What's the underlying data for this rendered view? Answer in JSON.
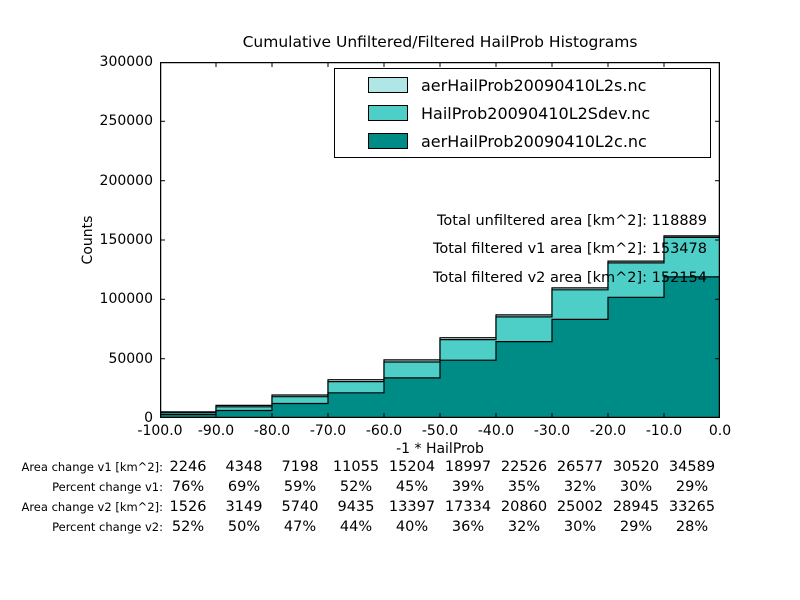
{
  "title": "Cumulative Unfiltered/Filtered HailProb Histograms",
  "legend": {
    "items": [
      {
        "label": "aerHailProb20090410L2s.nc",
        "color": "#B0E7E6"
      },
      {
        "label": "HailProb20090410L2Sdev.nc",
        "color": "#4DCFC8"
      },
      {
        "label": "aerHailProb20090410L2c.nc",
        "color": "#008C86"
      }
    ]
  },
  "annotations": {
    "total_unfiltered": "Total unfiltered area [km^2]: 118889",
    "total_filtered_v1": "Total filtered v1 area [km^2]: 153478",
    "total_filtered_v2": "Total filtered v2 area [km^2]: 152154"
  },
  "chart_data": {
    "type": "area",
    "subtype": "cumulative-step-histograms",
    "title": "Cumulative Unfiltered/Filtered HailProb Histograms",
    "xlabel": "-1 * HailProb",
    "ylabel": "Counts",
    "xlim": [
      -100,
      0
    ],
    "ylim": [
      0,
      300000
    ],
    "grid": false,
    "legend_position": "upper center",
    "bin_edges": [
      -100,
      -90,
      -80,
      -70,
      -60,
      -50,
      -40,
      -30,
      -20,
      -10,
      0
    ],
    "xtick_labels": [
      "-100.0",
      "-90.0",
      "-80.0",
      "-70.0",
      "-60.0",
      "-50.0",
      "-40.0",
      "-30.0",
      "-20.0",
      "-10.0",
      "0.0"
    ],
    "ytick_values": [
      0,
      50000,
      100000,
      150000,
      200000,
      250000,
      300000
    ],
    "series": [
      {
        "name": "aerHailProb20090410L2s.nc",
        "role": "filtered_v1_cumulative_counts",
        "color": "#B0E7E6",
        "values": [
          5201,
          10650,
          19398,
          32315,
          48994,
          67707,
          86886,
          109627,
          132250,
          153478
        ]
      },
      {
        "name": "HailProb20090410L2Sdev.nc",
        "role": "filtered_v2_cumulative_counts",
        "color": "#4DCFC8",
        "values": [
          4481,
          9451,
          17940,
          30695,
          47187,
          66044,
          85220,
          108052,
          130675,
          152154
        ]
      },
      {
        "name": "aerHailProb20090410L2c.nc",
        "role": "unfiltered_cumulative_counts",
        "color": "#008C86",
        "values": [
          2955,
          6302,
          12200,
          21260,
          33790,
          48710,
          64360,
          83050,
          101730,
          118889
        ]
      }
    ],
    "totals": {
      "unfiltered_area_km2": 118889,
      "filtered_v1_area_km2": 153478,
      "filtered_v2_area_km2": 152154
    }
  },
  "table": {
    "rows": [
      {
        "label": "Area change v1 [km^2]:",
        "values": [
          "2246",
          "4348",
          "7198",
          "11055",
          "15204",
          "18997",
          "22526",
          "26577",
          "30520",
          "34589"
        ]
      },
      {
        "label": "Percent change v1:",
        "values": [
          "76%",
          "69%",
          "59%",
          "52%",
          "45%",
          "39%",
          "35%",
          "32%",
          "30%",
          "29%"
        ]
      },
      {
        "label": "Area change v2 [km^2]:",
        "values": [
          "1526",
          "3149",
          "5740",
          "9435",
          "13397",
          "17334",
          "20860",
          "25002",
          "28945",
          "33265"
        ]
      },
      {
        "label": "Percent change v2:",
        "values": [
          "52%",
          "50%",
          "47%",
          "44%",
          "40%",
          "36%",
          "32%",
          "30%",
          "29%",
          "28%"
        ]
      }
    ]
  }
}
